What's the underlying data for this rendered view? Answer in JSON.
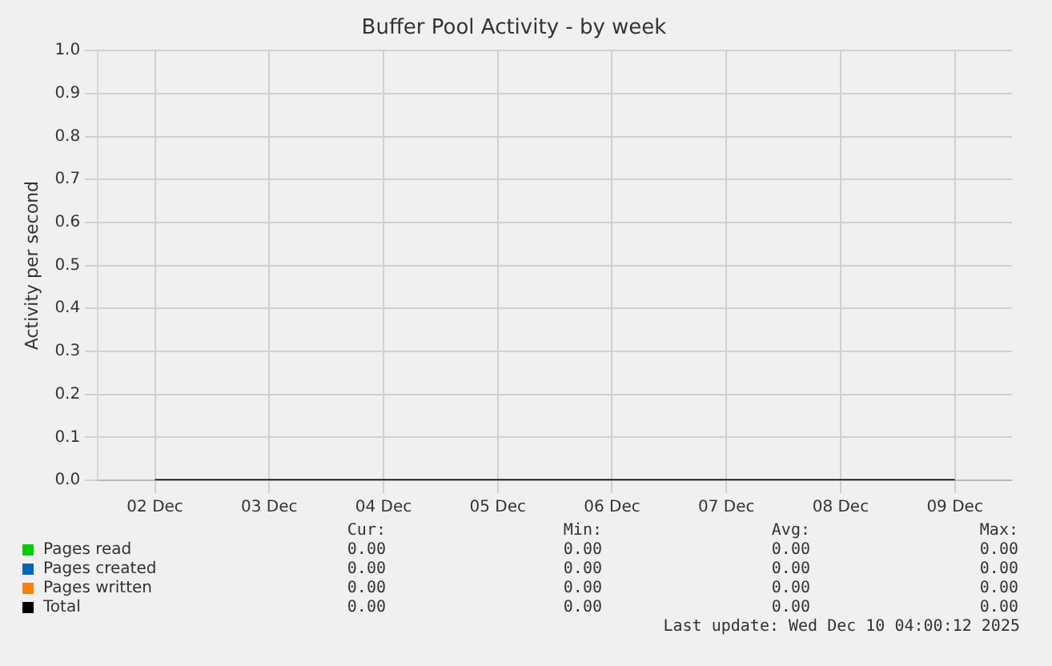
{
  "chart_data": {
    "type": "line",
    "title": "Buffer Pool Activity - by week",
    "ylabel": "Activity per second",
    "categories": [
      "02 Dec",
      "03 Dec",
      "04 Dec",
      "05 Dec",
      "06 Dec",
      "07 Dec",
      "08 Dec",
      "09 Dec"
    ],
    "series": [
      {
        "name": "Pages read",
        "color": "#00cc00",
        "values": [
          null,
          null,
          null,
          null,
          null,
          null,
          null,
          null
        ]
      },
      {
        "name": "Pages created",
        "color": "#0066b3",
        "values": [
          null,
          null,
          null,
          null,
          null,
          null,
          null,
          null
        ]
      },
      {
        "name": "Pages written",
        "color": "#ff8000",
        "values": [
          null,
          null,
          null,
          null,
          null,
          null,
          null,
          null
        ]
      },
      {
        "name": "Total",
        "color": "#000000",
        "values": [
          0,
          0,
          0,
          0,
          0,
          0,
          0,
          0
        ]
      }
    ],
    "ylim": [
      0,
      1
    ],
    "yticks": [
      {
        "value": 0,
        "label": "0.0"
      },
      {
        "value": 0.1,
        "label": "0.1"
      },
      {
        "value": 0.2,
        "label": "0.2"
      },
      {
        "value": 0.3,
        "label": "0.3"
      },
      {
        "value": 0.4,
        "label": "0.4"
      },
      {
        "value": 0.5,
        "label": "0.5"
      },
      {
        "value": 0.6,
        "label": "0.6"
      },
      {
        "value": 0.7,
        "label": "0.7"
      },
      {
        "value": 0.8,
        "label": "0.8"
      },
      {
        "value": 0.9,
        "label": "0.9"
      },
      {
        "value": 1,
        "label": "1.0"
      }
    ],
    "grid": true,
    "legend": "bottom",
    "marker": "none",
    "line_style": "solid",
    "annotations": [
      "Cur:",
      "Min:",
      "Avg:",
      "Max:",
      "0.00",
      "0.00",
      "0.00",
      "0.00",
      "0.00",
      "0.00",
      "0.00",
      "0.00",
      "0.00",
      "0.00",
      "0.00",
      "0.00",
      "0.00",
      "0.00",
      "0.00",
      "0.00",
      "Last update: Wed Dec 10 04:00:12 2025"
    ]
  }
}
